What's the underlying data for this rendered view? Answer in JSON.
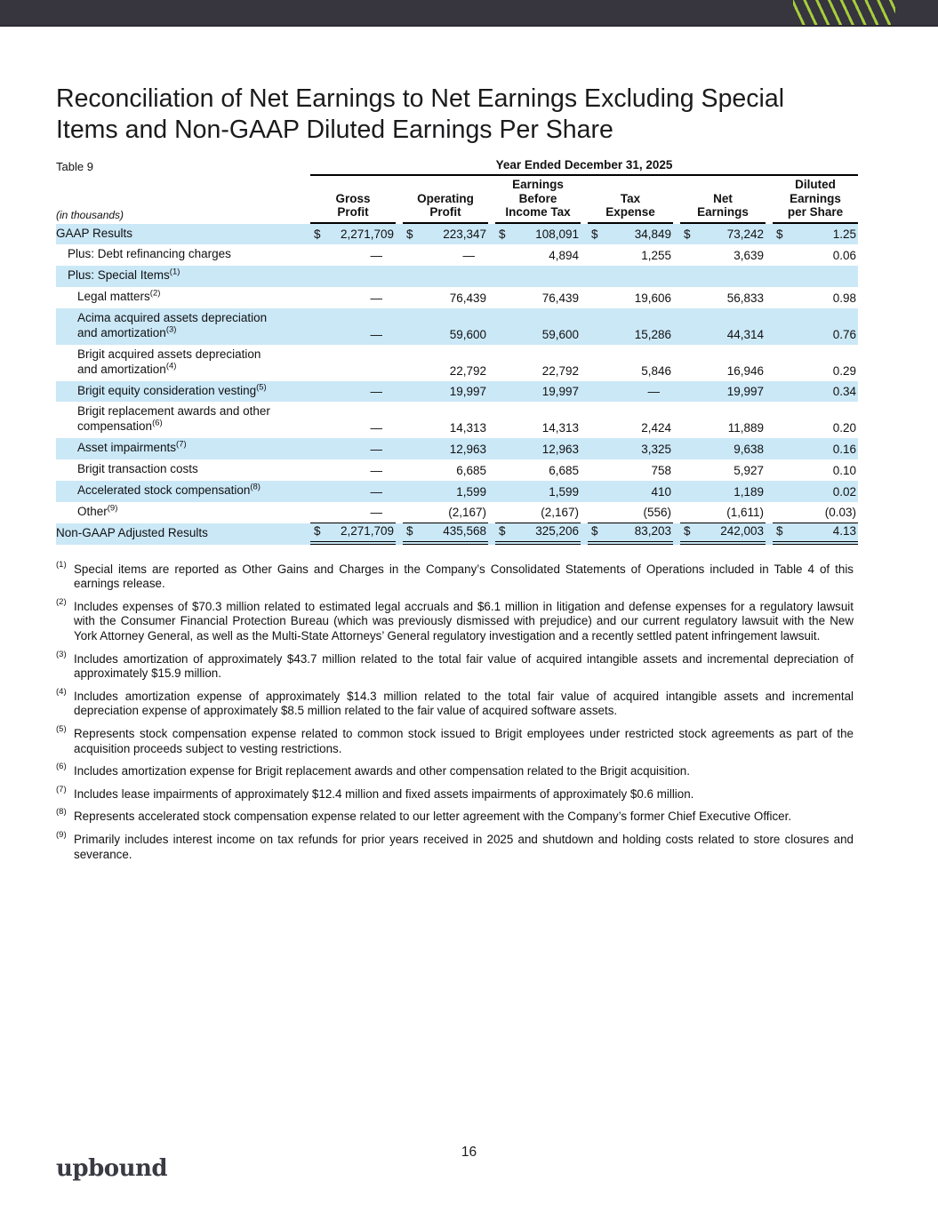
{
  "title": "Reconciliation of Net Earnings to Net Earnings Excluding Special\nItems and Non-GAAP Diluted Earnings Per Share",
  "table": {
    "label": "Table 9",
    "period_header": "Year Ended December 31, 2025",
    "units_note": "(in thousands)",
    "currency_symbol": "$",
    "columns": [
      "Gross\nProfit",
      "Operating\nProfit",
      "Earnings\nBefore\nIncome Tax",
      "Tax\nExpense",
      "Net\nEarnings",
      "Diluted\nEarnings\nper Share"
    ],
    "rows": [
      {
        "label": "GAAP Results",
        "sup": "",
        "values": [
          "2,271,709",
          "223,347",
          "108,091",
          "34,849",
          "73,242",
          "1.25"
        ]
      },
      {
        "label": "Plus: Debt refinancing charges",
        "sup": "",
        "values": [
          "—",
          "—",
          "4,894",
          "1,255",
          "3,639",
          "0.06"
        ]
      },
      {
        "label": "Plus: Special Items",
        "sup": "(1)",
        "values": [
          "",
          "",
          "",
          "",
          "",
          ""
        ]
      },
      {
        "label": "Legal matters",
        "sup": "(2)",
        "values": [
          "—",
          "76,439",
          "76,439",
          "19,606",
          "56,833",
          "0.98"
        ]
      },
      {
        "label": "Acima acquired assets depreciation\nand amortization",
        "sup": "(3)",
        "values": [
          "—",
          "59,600",
          "59,600",
          "15,286",
          "44,314",
          "0.76"
        ]
      },
      {
        "label": "Brigit acquired assets depreciation\nand amortization",
        "sup": "(4)",
        "values": [
          "",
          "22,792",
          "22,792",
          "5,846",
          "16,946",
          "0.29"
        ]
      },
      {
        "label": "Brigit equity consideration vesting",
        "sup": "(5)",
        "values": [
          "—",
          "19,997",
          "19,997",
          "—",
          "19,997",
          "0.34"
        ]
      },
      {
        "label": "Brigit replacement awards and other\ncompensation",
        "sup": "(6)",
        "values": [
          "—",
          "14,313",
          "14,313",
          "2,424",
          "11,889",
          "0.20"
        ]
      },
      {
        "label": "Asset impairments",
        "sup": "(7)",
        "values": [
          "—",
          "12,963",
          "12,963",
          "3,325",
          "9,638",
          "0.16"
        ]
      },
      {
        "label": "Brigit transaction costs",
        "sup": "",
        "values": [
          "—",
          "6,685",
          "6,685",
          "758",
          "5,927",
          "0.10"
        ]
      },
      {
        "label": "Accelerated stock compensation",
        "sup": "(8)",
        "values": [
          "—",
          "1,599",
          "1,599",
          "410",
          "1,189",
          "0.02"
        ]
      },
      {
        "label": "Other",
        "sup": "(9)",
        "values": [
          "—",
          "(2,167)",
          "(2,167)",
          "(556)",
          "(1,611)",
          "(0.03)"
        ]
      },
      {
        "label": "Non-GAAP Adjusted Results",
        "sup": "",
        "values": [
          "2,271,709",
          "435,568",
          "325,206",
          "83,203",
          "242,003",
          "4.13"
        ]
      }
    ]
  },
  "footnotes": [
    {
      "marker": "(1)",
      "text": "Special items are reported as Other Gains and Charges in the Company’s Consolidated Statements of Operations included in Table 4 of this earnings release."
    },
    {
      "marker": "(2)",
      "text": "Includes expenses of $70.3 million related to estimated legal accruals and $6.1 million in litigation and defense expenses for a regulatory lawsuit with the Consumer Financial Protection Bureau (which was previously dismissed with prejudice) and our current regulatory lawsuit with the New York Attorney General, as well as the Multi-State Attorneys’ General regulatory investigation and a recently settled patent infringement lawsuit."
    },
    {
      "marker": "(3)",
      "text": "Includes amortization of approximately $43.7 million related to the total fair value of acquired intangible assets and incremental depreciation of approximately $15.9 million."
    },
    {
      "marker": "(4)",
      "text": "Includes amortization expense of approximately $14.3 million related to the total fair value of acquired intangible assets and incremental depreciation expense of approximately $8.5 million related to the fair value of acquired software assets."
    },
    {
      "marker": "(5)",
      "text": "Represents stock compensation expense related to common stock issued to Brigit employees under restricted stock agreements as part of the acquisition proceeds subject to vesting restrictions."
    },
    {
      "marker": "(6)",
      "text": "Includes amortization expense for Brigit replacement awards and other compensation related to the Brigit acquisition."
    },
    {
      "marker": "(7)",
      "text": "Includes lease impairments of approximately $12.4 million and fixed assets impairments of approximately $0.6 million."
    },
    {
      "marker": "(8)",
      "text": "Represents accelerated stock compensation expense related to our letter agreement with the Company’s former Chief Executive Officer."
    },
    {
      "marker": "(9)",
      "text": "Primarily includes interest income on tax refunds for prior years received in 2025 and shutdown and holding costs related to store closures and severance."
    }
  ],
  "page_number": "16",
  "logo_text": "upbound",
  "colors": {
    "banner": "#37353e",
    "stripe_green": "#a6ce39",
    "row_highlight_blue": "#cbe8f7",
    "logo_text": "#3a3a44"
  }
}
